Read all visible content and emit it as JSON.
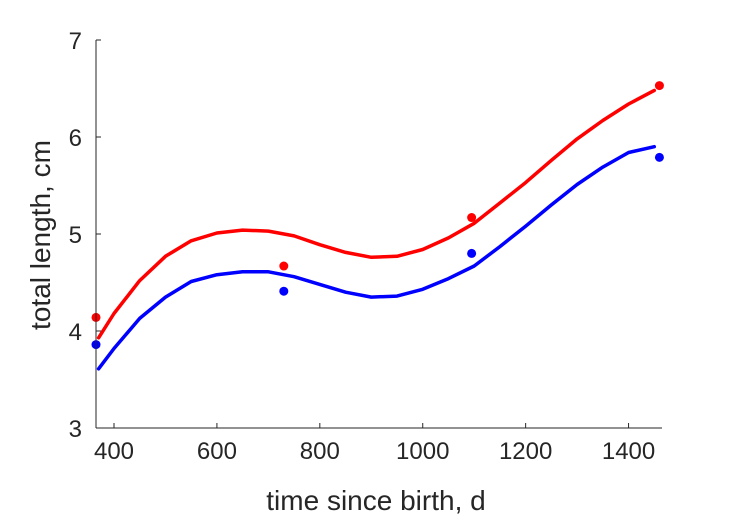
{
  "chart_data": {
    "type": "scatter",
    "title": "",
    "xlabel": "time since birth, d",
    "ylabel": "total length, cm",
    "xlim": [
      365,
      1465
    ],
    "ylim": [
      3,
      7
    ],
    "xticks": [
      400,
      600,
      800,
      1000,
      1200,
      1400
    ],
    "yticks": [
      3,
      4,
      5,
      6,
      7
    ],
    "grid": false,
    "box": "left-bottom axes only",
    "series": [
      {
        "color": "#ff0000",
        "points": {
          "x": [
            365,
            730,
            1095,
            1460
          ],
          "y": [
            4.14,
            4.67,
            5.17,
            6.53
          ]
        },
        "curve": {
          "x": [
            370,
            400,
            450,
            500,
            550,
            600,
            650,
            700,
            750,
            800,
            850,
            900,
            950,
            1000,
            1050,
            1100,
            1150,
            1200,
            1250,
            1300,
            1350,
            1400,
            1450
          ],
          "y": [
            3.93,
            4.18,
            4.52,
            4.77,
            4.93,
            5.01,
            5.04,
            5.03,
            4.98,
            4.89,
            4.81,
            4.76,
            4.77,
            4.84,
            4.96,
            5.11,
            5.32,
            5.53,
            5.76,
            5.98,
            6.17,
            6.34,
            6.48
          ]
        }
      },
      {
        "color": "#0000ff",
        "points": {
          "x": [
            365,
            730,
            1095,
            1460
          ],
          "y": [
            3.86,
            4.41,
            4.8,
            5.79
          ]
        },
        "curve": {
          "x": [
            370,
            400,
            450,
            500,
            550,
            600,
            650,
            700,
            750,
            800,
            850,
            900,
            950,
            1000,
            1050,
            1100,
            1150,
            1200,
            1250,
            1300,
            1350,
            1400,
            1450
          ],
          "y": [
            3.61,
            3.82,
            4.13,
            4.35,
            4.51,
            4.58,
            4.61,
            4.61,
            4.56,
            4.48,
            4.4,
            4.35,
            4.36,
            4.43,
            4.54,
            4.67,
            4.87,
            5.08,
            5.3,
            5.51,
            5.69,
            5.84,
            5.9
          ]
        }
      }
    ]
  }
}
